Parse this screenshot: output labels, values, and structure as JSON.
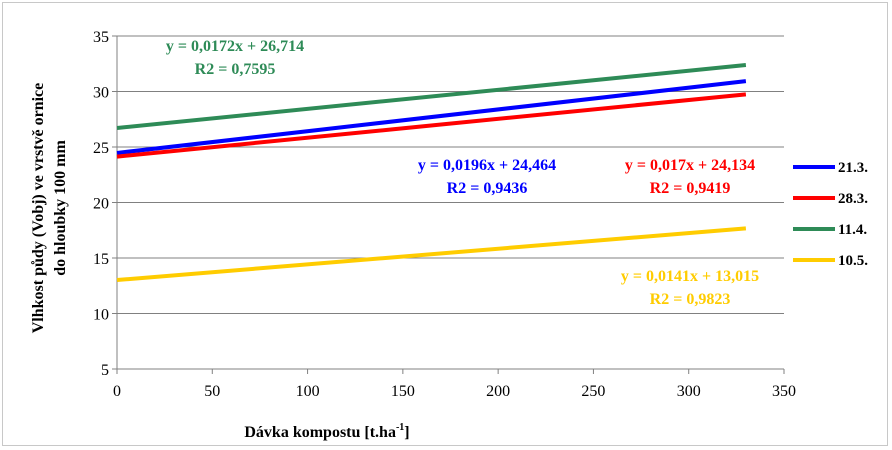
{
  "chart_data": {
    "type": "line",
    "title": "",
    "xlabel": "Dávka kompostu [t.ha",
    "xlabel_sup": "-1",
    "xlabel_end": "]",
    "ylabel_line1": "Vlhkost půdy (Vobj) ve vrstvě ornice",
    "ylabel_line2": "do hloubky  100 mm",
    "xlim": [
      0,
      350
    ],
    "ylim": [
      5,
      35
    ],
    "xticks": [
      0,
      50,
      100,
      150,
      200,
      250,
      300,
      350
    ],
    "yticks": [
      5,
      10,
      15,
      20,
      25,
      30,
      35
    ],
    "x_tick_labels": [
      "0",
      "50",
      "100",
      "150",
      "200",
      "250",
      "300",
      "350"
    ],
    "y_tick_labels": [
      "5",
      "10",
      "15",
      "20",
      "25",
      "30",
      "35"
    ],
    "grid": "horizontal",
    "legend_position": "right",
    "series": [
      {
        "name": "21.3.",
        "color": "#0000ff",
        "x": [
          0,
          330
        ],
        "y": [
          24.464,
          30.932
        ],
        "equation": "y = 0,0196x + 24,464",
        "r2": "R2 = 0,9436"
      },
      {
        "name": "28.3.",
        "color": "#ff0000",
        "x": [
          0,
          330
        ],
        "y": [
          24.134,
          29.744
        ],
        "equation": "y = 0,017x + 24,134",
        "r2": "R2 = 0,9419"
      },
      {
        "name": "11.4.",
        "color": "#2e8b57",
        "x": [
          0,
          330
        ],
        "y": [
          26.714,
          32.39
        ],
        "equation": "y = 0,0172x + 26,714",
        "r2": "R2 = 0,7595"
      },
      {
        "name": "10.5.",
        "color": "#ffcc00",
        "x": [
          0,
          330
        ],
        "y": [
          13.015,
          17.668
        ],
        "equation": "y = 0,0141x + 13,015",
        "r2": "R2 = 0,9823"
      }
    ]
  }
}
